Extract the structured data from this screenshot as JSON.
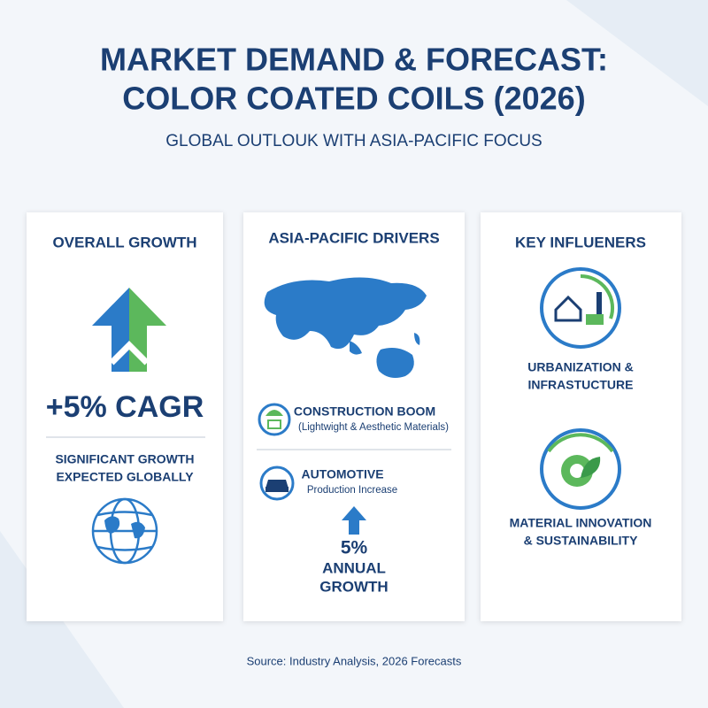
{
  "header": {
    "title": [
      "MARKET DEMAND & FORECAST:",
      "COLOR COATED COILS (2026)"
    ],
    "subtitle": "GLOBAL OUTLOUK WITH ASIA-PACIFIC FOCUS"
  },
  "panels": [
    {
      "heading": "OVERALL GROWTH",
      "stat": "+5% CAGR",
      "text": [
        "SIGNIFICANT GROWTH",
        "EXPECTED GLOBALLY"
      ]
    },
    {
      "heading": "ASIA-PACIFIC DRIVERS",
      "items": [
        {
          "title": "CONSTRUCTION BOOM",
          "detail": "(Lightwight & Aesthetic Materials)"
        },
        {
          "title": "AUTOMOTIVE",
          "detail": "Production Increase"
        }
      ],
      "stat": [
        "5%",
        "ANNUAL",
        "GROWTH"
      ]
    },
    {
      "heading": "KEY INFLUENERS",
      "items": [
        [
          "URBANIZATION &",
          "INFRASTUCTURE"
        ],
        [
          "MATERIAL INNOVATION",
          "& SUSTAINABILITY"
        ]
      ]
    }
  ],
  "footer": "Source: Industry Analysis, 2026 Forecasts"
}
